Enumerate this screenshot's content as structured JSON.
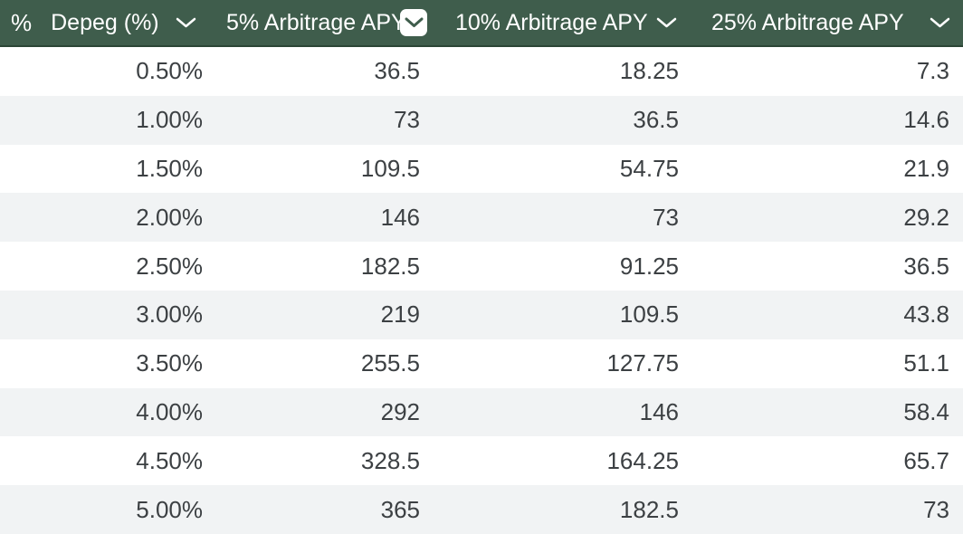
{
  "colors": {
    "header_bg": "#3F5D4C",
    "header_border": "#2C4636",
    "header_text": "#FFFFFF",
    "row_stripe": "#F1F3F4",
    "row_bg": "#FFFFFF",
    "cell_text": "#3C4043",
    "dropdown_box_bg": "#FFFFFF",
    "dropdown_box_chevron": "#3F5D4C"
  },
  "header": {
    "type_icon": "%",
    "columns": [
      {
        "label": "Depeg (%)"
      },
      {
        "label": "5% Arbitrage APY"
      },
      {
        "label": "10% Arbitrage APY"
      },
      {
        "label": "25% Arbitrage APY"
      }
    ]
  },
  "rows": [
    {
      "cells": [
        "0.50%",
        "36.5",
        "18.25",
        "7.3"
      ]
    },
    {
      "cells": [
        "1.00%",
        "73",
        "36.5",
        "14.6"
      ]
    },
    {
      "cells": [
        "1.50%",
        "109.5",
        "54.75",
        "21.9"
      ]
    },
    {
      "cells": [
        "2.00%",
        "146",
        "73",
        "29.2"
      ]
    },
    {
      "cells": [
        "2.50%",
        "182.5",
        "91.25",
        "36.5"
      ]
    },
    {
      "cells": [
        "3.00%",
        "219",
        "109.5",
        "43.8"
      ]
    },
    {
      "cells": [
        "3.50%",
        "255.5",
        "127.75",
        "51.1"
      ]
    },
    {
      "cells": [
        "4.00%",
        "292",
        "146",
        "58.4"
      ]
    },
    {
      "cells": [
        "4.50%",
        "328.5",
        "164.25",
        "65.7"
      ]
    },
    {
      "cells": [
        "5.00%",
        "365",
        "182.5",
        "73"
      ]
    }
  ]
}
